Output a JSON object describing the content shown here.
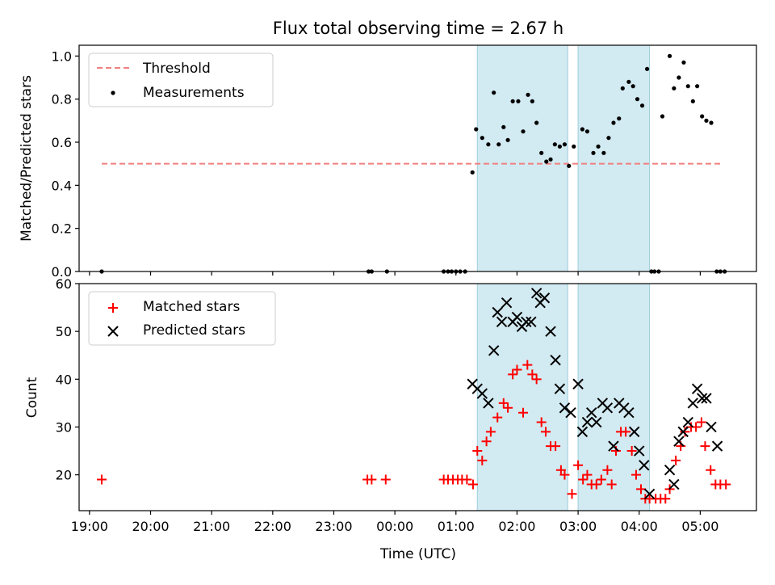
{
  "chart_data": [
    {
      "type": "scatter",
      "title": "Flux total observing time = 2.67 h",
      "ylabel": "Matched/Predicted stars",
      "xlabel": "",
      "xlim": [
        18.83,
        29.92
      ],
      "ylim": [
        0.0,
        1.05
      ],
      "yticks": [
        0.0,
        0.2,
        0.4,
        0.6,
        0.8,
        1.0
      ],
      "ytick_labels": [
        "0.0",
        "0.2",
        "0.4",
        "0.6",
        "0.8",
        "1.0"
      ],
      "shaded_regions": [
        [
          25.35,
          26.83
        ],
        [
          27.0,
          28.17
        ]
      ],
      "shade_color": "#add8e6",
      "threshold_color": "#f08080",
      "legend_position": "upper-left",
      "legend": [
        "Threshold",
        "Measurements"
      ],
      "series": [
        {
          "name": "Threshold",
          "kind": "dashed-line",
          "x": [
            19.2,
            29.33
          ],
          "y": [
            0.5,
            0.5
          ]
        },
        {
          "name": "Measurements",
          "kind": "points",
          "color": "#000000",
          "x": [
            19.2,
            23.57,
            23.62,
            23.87,
            24.8,
            24.87,
            24.93,
            25.0,
            25.07,
            25.15,
            25.27,
            25.33,
            25.43,
            25.53,
            25.62,
            25.7,
            25.78,
            25.85,
            25.93,
            26.02,
            26.1,
            26.18,
            26.25,
            26.32,
            26.4,
            26.48,
            26.55,
            26.62,
            26.7,
            26.78,
            26.85,
            26.93,
            27.07,
            27.15,
            27.25,
            27.33,
            27.42,
            27.5,
            27.58,
            27.67,
            27.73,
            27.83,
            27.9,
            27.97,
            28.05,
            28.13,
            28.2,
            28.25,
            28.32,
            28.38,
            28.5,
            28.57,
            28.65,
            28.73,
            28.8,
            28.88,
            28.95,
            29.03,
            29.1,
            29.18,
            29.27,
            29.33,
            29.4
          ],
          "y": [
            0.0,
            0.0,
            0.0,
            0.0,
            0.0,
            0.0,
            0.0,
            0.0,
            0.0,
            0.0,
            0.46,
            0.66,
            0.62,
            0.59,
            0.83,
            0.59,
            0.67,
            0.61,
            0.79,
            0.79,
            0.65,
            0.82,
            0.79,
            0.69,
            0.55,
            0.51,
            0.52,
            0.59,
            0.58,
            0.59,
            0.49,
            0.58,
            0.66,
            0.65,
            0.55,
            0.58,
            0.55,
            0.62,
            0.69,
            0.71,
            0.85,
            0.88,
            0.86,
            0.8,
            0.77,
            0.94,
            0.0,
            0.0,
            0.0,
            0.72,
            1.0,
            0.85,
            0.9,
            0.97,
            0.86,
            0.79,
            0.86,
            0.72,
            0.7,
            0.69,
            0.0,
            0.0,
            0.0
          ]
        }
      ]
    },
    {
      "type": "scatter",
      "title": "",
      "ylabel": "Count",
      "xlabel": "Time (UTC)",
      "xlim": [
        18.83,
        29.92
      ],
      "ylim": [
        12.5,
        60
      ],
      "xticks": [
        19,
        20,
        21,
        22,
        23,
        24,
        25,
        26,
        27,
        28,
        29
      ],
      "xtick_labels": [
        "19:00",
        "20:00",
        "21:00",
        "22:00",
        "23:00",
        "00:00",
        "01:00",
        "02:00",
        "03:00",
        "04:00",
        "05:00"
      ],
      "yticks": [
        20,
        30,
        40,
        50,
        60
      ],
      "ytick_labels": [
        "20",
        "30",
        "40",
        "50",
        "60"
      ],
      "shaded_regions": [
        [
          25.35,
          26.83
        ],
        [
          27.0,
          28.17
        ]
      ],
      "legend_position": "upper-left",
      "legend": [
        "Matched stars",
        "Predicted stars"
      ],
      "series": [
        {
          "name": "Matched stars",
          "marker": "plus",
          "color": "#ff0000",
          "x": [
            19.2,
            23.55,
            23.62,
            23.85,
            24.8,
            24.87,
            24.95,
            25.03,
            25.1,
            25.18,
            25.28,
            25.35,
            25.43,
            25.5,
            25.57,
            25.68,
            25.78,
            25.85,
            25.93,
            26.0,
            26.1,
            26.17,
            26.25,
            26.32,
            26.4,
            26.47,
            26.55,
            26.63,
            26.72,
            26.78,
            26.9,
            27.0,
            27.08,
            27.15,
            27.22,
            27.3,
            27.38,
            27.48,
            27.55,
            27.62,
            27.7,
            27.78,
            27.88,
            27.95,
            28.03,
            28.1,
            28.17,
            28.27,
            28.35,
            28.43,
            28.5,
            28.6,
            28.68,
            28.75,
            28.85,
            28.93,
            29.02,
            29.08,
            29.17,
            29.25,
            29.33,
            29.42
          ],
          "y": [
            19,
            19,
            19,
            19,
            19,
            19,
            19,
            19,
            19,
            19,
            18,
            25,
            23,
            27,
            29,
            32,
            35,
            34,
            41,
            42,
            33,
            43,
            41,
            40,
            31,
            29,
            26,
            26,
            21,
            20,
            16,
            22,
            19,
            20,
            18,
            18,
            19,
            21,
            18,
            25,
            29,
            29,
            25,
            20,
            17,
            15,
            15,
            15,
            15,
            15,
            17,
            23,
            26,
            29,
            30,
            30,
            31,
            26,
            21,
            18,
            18,
            18
          ]
        },
        {
          "name": "Predicted stars",
          "marker": "x",
          "color": "#000000",
          "x": [
            25.27,
            25.35,
            25.43,
            25.53,
            25.62,
            25.68,
            25.75,
            25.83,
            25.93,
            26.0,
            26.08,
            26.15,
            26.23,
            26.32,
            26.38,
            26.45,
            26.55,
            26.63,
            26.7,
            26.78,
            26.88,
            27.0,
            27.07,
            27.15,
            27.22,
            27.3,
            27.4,
            27.48,
            27.58,
            27.67,
            27.75,
            27.83,
            27.92,
            28.0,
            28.08,
            28.17,
            28.5,
            28.57,
            28.65,
            28.72,
            28.8,
            28.88,
            28.95,
            29.03,
            29.1,
            29.18,
            29.28
          ],
          "y": [
            39,
            38,
            37,
            35,
            46,
            54,
            52,
            56,
            52,
            53,
            51,
            52,
            52,
            58,
            56,
            57,
            50,
            44,
            38,
            34,
            33,
            39,
            29,
            31,
            33,
            31,
            35,
            34,
            26,
            35,
            34,
            33,
            29,
            25,
            22,
            16,
            21,
            18,
            27,
            29,
            31,
            35,
            38,
            36,
            36,
            30,
            26
          ]
        }
      ]
    }
  ]
}
